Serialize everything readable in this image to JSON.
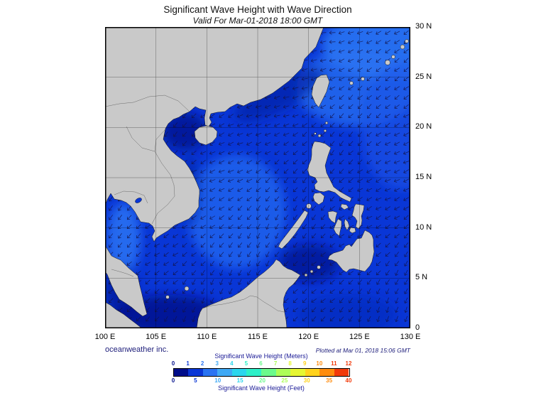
{
  "header": {
    "title": "Significant Wave Height with Wave Direction",
    "subtitle": "Valid For Mar-01-2018 18:00 GMT"
  },
  "map": {
    "lat_labels": [
      "30 N",
      "25 N",
      "20 N",
      "15 N",
      "10 N",
      "5 N",
      "0"
    ],
    "lon_labels": [
      "100 E",
      "105 E",
      "110 E",
      "115 E",
      "120 E",
      "125 E",
      "130 E"
    ]
  },
  "footer": {
    "credit": "oceanweather inc.",
    "plotted": "Plotted at Mar 01, 2018 15:06 GMT"
  },
  "legend": {
    "title_meters": "Significant Wave Height (Meters)",
    "title_feet": "Significant Wave Height (Feet)",
    "meters_ticks": [
      "0",
      "1",
      "2",
      "3",
      "4",
      "5",
      "6",
      "7",
      "8",
      "9",
      "10",
      "11",
      "12"
    ],
    "feet_ticks": [
      "0",
      "5",
      "10",
      "15",
      "20",
      "25",
      "30",
      "35",
      "40"
    ],
    "meters_range": [
      0,
      12
    ],
    "feet_range": [
      0,
      40
    ],
    "colors": [
      "#000D8A",
      "#0936D6",
      "#2973F2",
      "#3FA9F5",
      "#2BD6ED",
      "#2EF0C8",
      "#6BFA8C",
      "#ADFD57",
      "#E6F632",
      "#FFD21C",
      "#FF8C0D",
      "#F23A0A"
    ],
    "land_color": "#c9c9c9",
    "ocean_base_color": "#0936D6"
  }
}
